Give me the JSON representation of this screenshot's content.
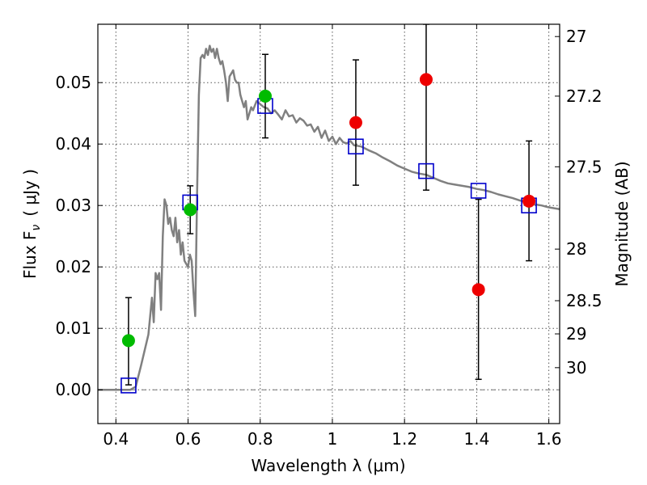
{
  "chart_data": {
    "type": "scatter",
    "title": "",
    "xlabel": "Wavelength  λ (μm)",
    "ylabel": "Flux  F",
    "ylabel_sub": "ν",
    "ylabel_unit": "( μJy )",
    "y2label": "Magnitude (AB)",
    "xlim": [
      0.35,
      1.63
    ],
    "ylim": [
      -0.0055,
      0.0595
    ],
    "x_ticks": [
      0.4,
      0.6,
      0.8,
      1.0,
      1.2,
      1.4,
      1.6
    ],
    "x_tick_labels": [
      "0.4",
      "0.6",
      "0.8",
      "1",
      "1.2",
      "1.4",
      "1.6"
    ],
    "y_ticks": [
      0.0,
      0.01,
      0.02,
      0.03,
      0.04,
      0.05
    ],
    "y_tick_labels": [
      "0.00",
      "0.01",
      "0.02",
      "0.03",
      "0.04",
      "0.05"
    ],
    "y2_ticks": [
      {
        "label": "27",
        "flux": 0.0575
      },
      {
        "label": "27.2",
        "flux": 0.0478
      },
      {
        "label": "27.5",
        "flux": 0.0363
      },
      {
        "label": "28",
        "flux": 0.0229
      },
      {
        "label": "28.5",
        "flux": 0.0145
      },
      {
        "label": "29",
        "flux": 0.0091
      },
      {
        "label": "30",
        "flux": 0.0036
      }
    ],
    "grid": true,
    "colors": {
      "model": "#808080",
      "model_photometry": "#0000cc",
      "green_points": "#00bb00",
      "red_points": "#ee0000",
      "errorbar": "#000000"
    },
    "series": [
      {
        "kind": "model_spectrum",
        "x": [
          0.35,
          0.44,
          0.455,
          0.47,
          0.49,
          0.5,
          0.505,
          0.51,
          0.515,
          0.52,
          0.525,
          0.53,
          0.535,
          0.54,
          0.545,
          0.55,
          0.555,
          0.56,
          0.565,
          0.57,
          0.575,
          0.58,
          0.585,
          0.59,
          0.6,
          0.605,
          0.61,
          0.615,
          0.62,
          0.625,
          0.63,
          0.635,
          0.64,
          0.645,
          0.65,
          0.655,
          0.66,
          0.665,
          0.67,
          0.675,
          0.68,
          0.685,
          0.69,
          0.695,
          0.7,
          0.705,
          0.71,
          0.715,
          0.72,
          0.725,
          0.73,
          0.735,
          0.74,
          0.745,
          0.75,
          0.755,
          0.76,
          0.765,
          0.77,
          0.775,
          0.78,
          0.79,
          0.8,
          0.81,
          0.82,
          0.83,
          0.84,
          0.85,
          0.86,
          0.87,
          0.88,
          0.89,
          0.9,
          0.91,
          0.92,
          0.93,
          0.94,
          0.95,
          0.96,
          0.97,
          0.98,
          0.99,
          1.0,
          1.01,
          1.02,
          1.03,
          1.04,
          1.05,
          1.06,
          1.08,
          1.1,
          1.12,
          1.14,
          1.16,
          1.18,
          1.2,
          1.22,
          1.24,
          1.26,
          1.28,
          1.3,
          1.32,
          1.34,
          1.36,
          1.38,
          1.4,
          1.42,
          1.44,
          1.46,
          1.48,
          1.5,
          1.52,
          1.54,
          1.56,
          1.58,
          1.6,
          1.63
        ],
        "y": [
          0.0,
          0.0,
          0.0005,
          0.004,
          0.009,
          0.015,
          0.011,
          0.019,
          0.018,
          0.019,
          0.013,
          0.025,
          0.031,
          0.03,
          0.027,
          0.028,
          0.026,
          0.025,
          0.028,
          0.024,
          0.026,
          0.022,
          0.024,
          0.021,
          0.02,
          0.022,
          0.021,
          0.016,
          0.012,
          0.032,
          0.048,
          0.054,
          0.0545,
          0.054,
          0.0555,
          0.0545,
          0.056,
          0.055,
          0.0555,
          0.054,
          0.0555,
          0.054,
          0.053,
          0.0535,
          0.052,
          0.05,
          0.047,
          0.051,
          0.0515,
          0.052,
          0.0505,
          0.05,
          0.05,
          0.048,
          0.047,
          0.046,
          0.047,
          0.044,
          0.045,
          0.046,
          0.0455,
          0.047,
          0.0465,
          0.046,
          0.0458,
          0.045,
          0.0455,
          0.0448,
          0.044,
          0.0455,
          0.0445,
          0.0447,
          0.0435,
          0.0442,
          0.0438,
          0.043,
          0.0432,
          0.042,
          0.0428,
          0.041,
          0.0422,
          0.0405,
          0.0412,
          0.04,
          0.041,
          0.0403,
          0.0401,
          0.0405,
          0.0398,
          0.0396,
          0.039,
          0.0385,
          0.0378,
          0.0372,
          0.0365,
          0.036,
          0.0355,
          0.0352,
          0.035,
          0.0345,
          0.034,
          0.0336,
          0.0334,
          0.0332,
          0.033,
          0.0327,
          0.0325,
          0.0322,
          0.0318,
          0.0315,
          0.0312,
          0.0308,
          0.0305,
          0.0302,
          0.03,
          0.0297,
          0.0294
        ]
      },
      {
        "kind": "model_photometry",
        "marker": "open-square",
        "x": [
          0.435,
          0.606,
          0.814,
          1.065,
          1.26,
          1.405,
          1.545
        ],
        "y": [
          0.0007,
          0.0305,
          0.0462,
          0.0396,
          0.0356,
          0.0324,
          0.03
        ]
      },
      {
        "kind": "observed",
        "marker": "filled-circle",
        "color": "green",
        "x": [
          0.435,
          0.606,
          0.814
        ],
        "y": [
          0.008,
          0.0293,
          0.0478
        ],
        "yerr_low": [
          0.0008,
          0.0254,
          0.041
        ],
        "yerr_high": [
          0.015,
          0.0332,
          0.0546
        ]
      },
      {
        "kind": "observed",
        "marker": "filled-circle",
        "color": "red",
        "x": [
          1.065,
          1.26,
          1.405,
          1.545
        ],
        "y": [
          0.0435,
          0.0505,
          0.0163,
          0.0307
        ],
        "yerr_low": [
          0.0333,
          0.0325,
          0.0017,
          0.021
        ],
        "yerr_high": [
          0.0537,
          0.0595,
          0.031,
          0.0405
        ]
      }
    ]
  }
}
